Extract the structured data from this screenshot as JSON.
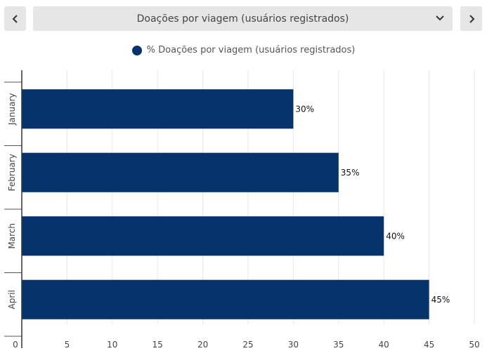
{
  "header": {
    "select_label": "Doações por viagem (usuários registrados)",
    "prev_icon": "chevron-left-icon",
    "next_icon": "chevron-right-icon",
    "dropdown_icon": "chevron-down-icon"
  },
  "legend": {
    "label": "% Doações por viagem (usuários registrados)"
  },
  "colors": {
    "bar": "#06336c",
    "button_bg": "#e6e6e6",
    "grid": "#e6e6e6"
  },
  "chart_data": {
    "type": "bar",
    "orientation": "horizontal",
    "categories": [
      "January",
      "February",
      "March",
      "April"
    ],
    "series": [
      {
        "name": "% Doações por viagem (usuários registrados)",
        "values": [
          30,
          35,
          40,
          45
        ]
      }
    ],
    "data_labels": [
      "30%",
      "35%",
      "40%",
      "45%"
    ],
    "xlim": [
      0,
      50
    ],
    "x_ticks": [
      0,
      5,
      10,
      15,
      20,
      25,
      30,
      35,
      40,
      45,
      50
    ],
    "grid": true,
    "legend_position": "top"
  }
}
